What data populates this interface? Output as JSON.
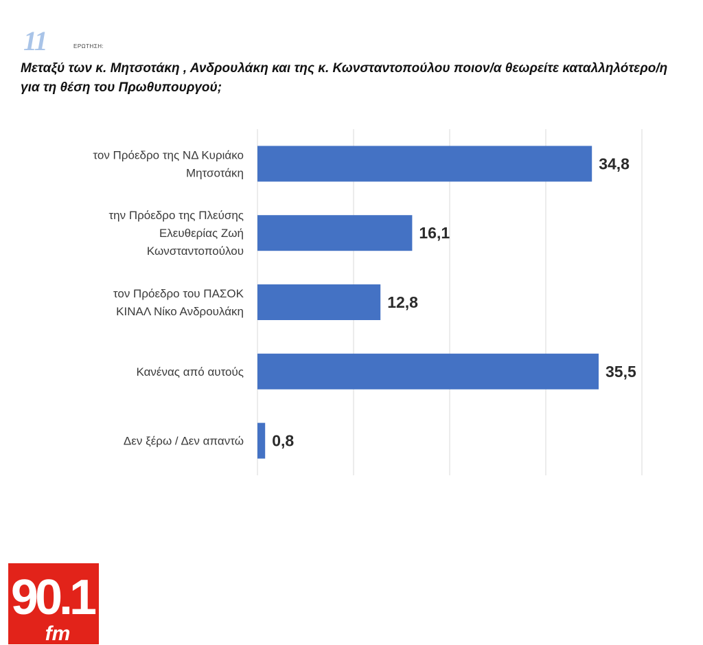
{
  "header": {
    "question_number": "11",
    "question_tag": "ΕΡΩΤΗΣΗ:",
    "question_text": "Μεταξύ των κ. Μητσοτάκη , Ανδρουλάκη και της κ. Κωνσταντοπούλου ποιον/α θεωρείτε καταλληλότερο/η για τη θέση του Πρωθυπουργού;"
  },
  "logo": {
    "text_main": "90.1",
    "text_sub": "fm",
    "color": "#e2231a"
  },
  "colors": {
    "bar": "#4472c4",
    "grid": "#d9d9d9"
  },
  "chart_data": {
    "type": "bar",
    "orientation": "horizontal",
    "title": "Μεταξύ των κ. Μητσοτάκη , Ανδρουλάκη και της κ. Κωνσταντοπούλου ποιον/α θεωρείτε καταλληλότερο/η για τη θέση του Πρωθυπουργού;",
    "categories": [
      [
        "τον Πρόεδρο της ΝΔ Κυριάκο",
        "Μητσοτάκη"
      ],
      [
        "την Πρόεδρο της Πλεύσης",
        "Ελευθερίας Ζωή",
        "Κωνσταντοπούλου"
      ],
      [
        "τον Πρόεδρο του ΠΑΣΟΚ",
        "ΚΙΝΑΛ Νίκο Ανδρουλάκη"
      ],
      [
        "Κανένας από αυτούς"
      ],
      [
        "Δεν ξέρω / Δεν απαντώ"
      ]
    ],
    "values": [
      34.8,
      16.1,
      12.8,
      35.5,
      0.8
    ],
    "value_labels": [
      "34,8",
      "16,1",
      "12,8",
      "35,5",
      "0,8"
    ],
    "xlim": [
      0,
      40
    ],
    "grid": true,
    "legend": "none"
  }
}
